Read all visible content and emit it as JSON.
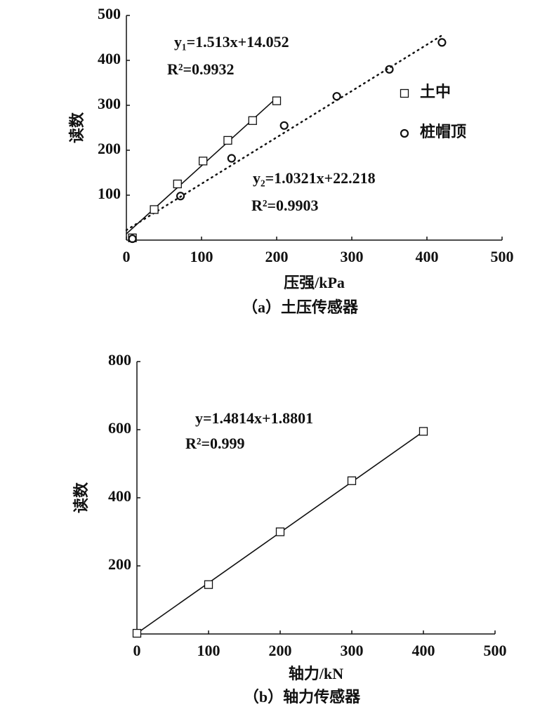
{
  "chart_data": [
    {
      "type": "scatter",
      "caption": "（a）土压传感器",
      "xlabel": "压强/kPa",
      "ylabel": "读数",
      "xlim": [
        0,
        500
      ],
      "xticks": [
        0,
        100,
        200,
        300,
        400,
        500
      ],
      "ylim": [
        0,
        500
      ],
      "yticks": [
        100,
        200,
        300,
        400,
        500
      ],
      "series": [
        {
          "name": "土中",
          "marker": "square",
          "color": "#111111",
          "x": [
            8,
            37,
            68,
            102,
            135,
            168,
            200
          ],
          "values": [
            5,
            68,
            125,
            176,
            222,
            266,
            310
          ]
        },
        {
          "name": "桩帽顶",
          "marker": "circle",
          "color": "#111111",
          "x": [
            8,
            72,
            140,
            210,
            280,
            350,
            420
          ],
          "values": [
            3,
            98,
            182,
            255,
            320,
            380,
            440
          ]
        }
      ],
      "trendlines": [
        {
          "style": "solid",
          "x": [
            0,
            200
          ],
          "values": [
            14.052,
            316.652
          ]
        },
        {
          "style": "dotted",
          "x": [
            0,
            420
          ],
          "values": [
            22.218,
            455.7
          ]
        }
      ],
      "annotations": [
        "y₁=1.513x+14.052",
        "R²=0.9932",
        "y₂=1.0321x+22.218",
        "R²=0.9903"
      ]
    },
    {
      "type": "scatter",
      "caption": "（b）轴力传感器",
      "xlabel": "轴力/kN",
      "ylabel": "读数",
      "xlim": [
        0,
        500
      ],
      "xticks": [
        0,
        100,
        200,
        300,
        400,
        500
      ],
      "ylim": [
        0,
        800
      ],
      "yticks": [
        200,
        400,
        600,
        800
      ],
      "series": [
        {
          "marker": "square",
          "color": "#111111",
          "x": [
            0,
            100,
            200,
            300,
            400
          ],
          "values": [
            2,
            145,
            300,
            450,
            595
          ]
        }
      ],
      "trendlines": [
        {
          "style": "solid",
          "x": [
            0,
            400
          ],
          "values": [
            1.8801,
            594.44
          ]
        }
      ],
      "annotations": [
        "y=1.4814x+1.8801",
        "R²=0.999"
      ]
    }
  ]
}
